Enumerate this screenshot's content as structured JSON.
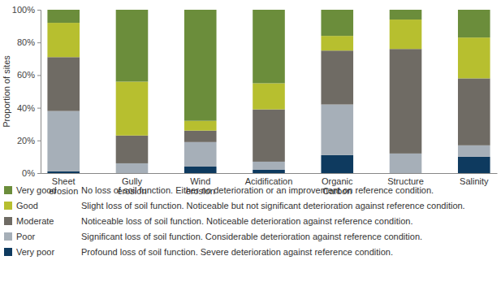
{
  "chart_data": {
    "type": "bar",
    "stacked": true,
    "legend": "bottom",
    "grid": false,
    "y_label": "Proportion of sites",
    "categories": [
      "Sheet erosion",
      "Gully erosion",
      "Wind erosion",
      "Acidification",
      "Organic Carbon",
      "Structure",
      "Salinity"
    ],
    "ylim": [
      0,
      100
    ],
    "yticks": [
      {
        "value": 0,
        "label": "0%"
      },
      {
        "value": 20,
        "label": "20%"
      },
      {
        "value": 40,
        "label": "40%"
      },
      {
        "value": 60,
        "label": "60%"
      },
      {
        "value": 80,
        "label": "80%"
      },
      {
        "value": 100,
        "label": "100%"
      }
    ],
    "series": [
      {
        "name": "Very poor",
        "color": "#0e3a5f",
        "description": "Profound loss of soil function. Severe deterioration against reference condition.",
        "values": [
          1,
          0,
          4,
          2,
          11,
          0,
          10
        ]
      },
      {
        "name": "Poor",
        "color": "#a6afb8",
        "description": "Significant loss of soil function. Considerable deterioration against reference condition.",
        "values": [
          37,
          6,
          15,
          5,
          31,
          12,
          7
        ]
      },
      {
        "name": "Moderate",
        "color": "#6f6b64",
        "description": "Noticeable loss of soil function. Noticeable deterioration against reference condition.",
        "values": [
          33,
          17,
          7,
          32,
          33,
          64,
          41
        ]
      },
      {
        "name": "Good",
        "color": "#b7bf2f",
        "description": "Slight loss of soil function. Noticeable but not significant deterioration against reference condition.",
        "values": [
          21,
          33,
          6,
          16,
          9,
          18,
          25
        ]
      },
      {
        "name": "Very good",
        "color": "#6b8d3b",
        "description": "No loss of soil function. Either no deterioration or an improvement on reference condition.",
        "values": [
          8,
          44,
          68,
          45,
          16,
          6,
          17
        ]
      }
    ]
  }
}
